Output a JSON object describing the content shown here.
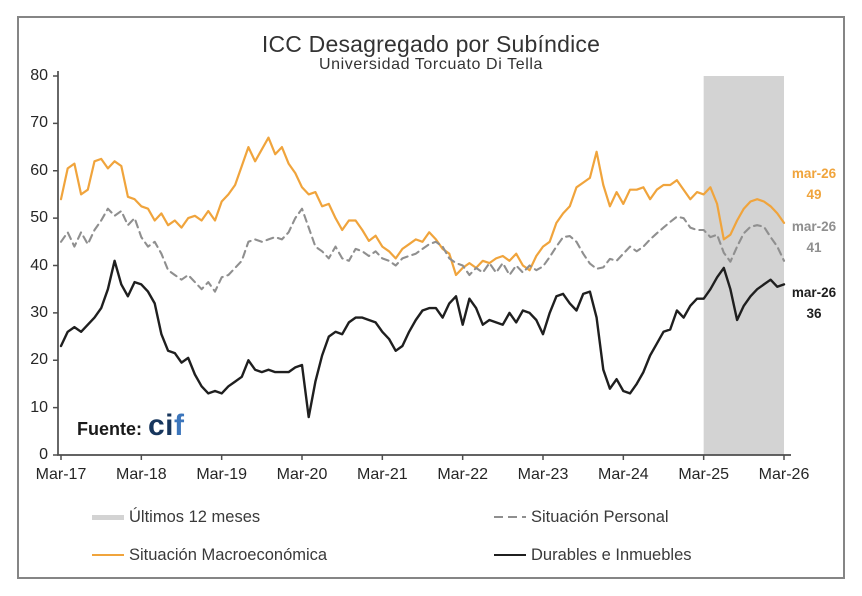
{
  "chart_data": {
    "type": "line",
    "title": "ICC Desagregado por Subíndice",
    "subtitle": "Universidad Torcuato Di Tella",
    "ylim": [
      0,
      80
    ],
    "y_ticks": [
      0,
      10,
      20,
      30,
      40,
      50,
      60,
      70,
      80
    ],
    "x_tick_labels": [
      "Mar-17",
      "Mar-18",
      "Mar-19",
      "Mar-20",
      "Mar-21",
      "Mar-22",
      "Mar-23",
      "Mar-24",
      "Mar-25",
      "Mar-26"
    ],
    "months_per_tick": 12,
    "highlight_band": {
      "label": "Últimos 12 meses",
      "from_index": 96,
      "to_index": 108,
      "color": "#d3d3d3"
    },
    "series": [
      {
        "key": "macro",
        "name": "Situación Macroeconómica",
        "color": "#f0a43c",
        "style": "solid",
        "width": 2.2,
        "end_label": {
          "period": "mar-26",
          "value": 49
        },
        "values": [
          54,
          60.5,
          61.5,
          55,
          56,
          62,
          62.5,
          60.5,
          62,
          61,
          54.5,
          54,
          52.5,
          52,
          49.5,
          51,
          48.5,
          49.5,
          48,
          50,
          50.5,
          49.5,
          51.5,
          49.5,
          53.5,
          55,
          57,
          61,
          65,
          62,
          64.5,
          67,
          63.5,
          65,
          61.5,
          59.5,
          56.5,
          55,
          55.5,
          52.5,
          53,
          50,
          47.5,
          49.5,
          49.5,
          47.5,
          45.2,
          46.3,
          44,
          43,
          41.5,
          43.5,
          44.5,
          45.5,
          45,
          47,
          45.5,
          43.5,
          42.5,
          38,
          39.5,
          40.5,
          39.5,
          41,
          40.5,
          41.5,
          42,
          41,
          42.5,
          40,
          39,
          42,
          44,
          45,
          49,
          51,
          52.5,
          56.5,
          57.5,
          58.5,
          64,
          57,
          52.5,
          55.5,
          53,
          56,
          56,
          56.5,
          54,
          56,
          57,
          57,
          58,
          56,
          54,
          55.5,
          55,
          56.5,
          53,
          45.5,
          46.5,
          49.5,
          52,
          53.5,
          54,
          53.5,
          52.5,
          51,
          49
        ]
      },
      {
        "key": "personal",
        "name": "Situación Personal",
        "color": "#8f8f8f",
        "style": "dashed",
        "width": 2.1,
        "end_label": {
          "period": "mar-26",
          "value": 41
        },
        "values": [
          45,
          47,
          44,
          47,
          44.5,
          47.5,
          49.5,
          52,
          50.5,
          51.5,
          48.5,
          50,
          46,
          44,
          45,
          42.5,
          39,
          38,
          37,
          38,
          36.5,
          35,
          36.5,
          34.5,
          37.5,
          38,
          39.5,
          41,
          45,
          45.5,
          45,
          45.5,
          46,
          45.5,
          47,
          50,
          52,
          48,
          44,
          43,
          41.5,
          44,
          41.5,
          41,
          43.5,
          43,
          42,
          43,
          41.5,
          41,
          40,
          41.5,
          42,
          42.5,
          43.5,
          44.5,
          45,
          44,
          41.5,
          40.5,
          40,
          38,
          39.5,
          38.5,
          40.5,
          38.5,
          40.5,
          38,
          40,
          38.5,
          40,
          39,
          39.8,
          41.8,
          44,
          46,
          46.2,
          45,
          42.5,
          40.4,
          39.3,
          39.6,
          41.4,
          41,
          42.5,
          44,
          43,
          44,
          45.5,
          46.8,
          48,
          49.2,
          50.3,
          50,
          48,
          47.5,
          47.5,
          46,
          46.5,
          42.7,
          40.8,
          44,
          46.8,
          48.2,
          48.5,
          48.2,
          46,
          44,
          41
        ]
      },
      {
        "key": "durables",
        "name": "Durables e Inmuebles",
        "color": "#1f1f1f",
        "style": "solid",
        "width": 2.4,
        "end_label": {
          "period": "mar-26",
          "value": 36
        },
        "values": [
          23,
          26,
          27,
          26,
          27.5,
          29,
          31,
          35,
          41,
          36,
          33.5,
          36.5,
          36,
          34.5,
          32,
          25.5,
          22,
          21.5,
          19.5,
          20.5,
          17,
          14.5,
          13,
          13.5,
          13,
          14.5,
          15.5,
          16.5,
          20,
          18,
          17.5,
          18,
          17.5,
          17.5,
          17.5,
          18.5,
          19,
          8,
          15.5,
          21,
          25,
          26,
          25.5,
          28,
          29,
          29,
          28.5,
          28,
          26,
          24.5,
          22,
          23,
          26,
          28.5,
          30.5,
          31,
          31,
          29,
          32,
          33.5,
          27.5,
          33,
          31,
          27.5,
          28.5,
          28,
          27.5,
          30,
          28,
          30.5,
          30,
          28.5,
          25.5,
          30,
          33.5,
          34,
          32,
          30.5,
          34,
          34.5,
          29,
          18,
          14,
          16,
          13.5,
          13,
          15,
          17.5,
          21,
          23.5,
          26,
          26.5,
          30.5,
          29,
          31.5,
          33,
          33,
          35,
          37.5,
          39.5,
          35,
          28.5,
          31.5,
          33.5,
          35,
          36,
          37,
          35.5,
          36
        ]
      }
    ],
    "source": {
      "prefix": "Fuente:",
      "brand_ci": "ci",
      "brand_f": "f"
    }
  }
}
